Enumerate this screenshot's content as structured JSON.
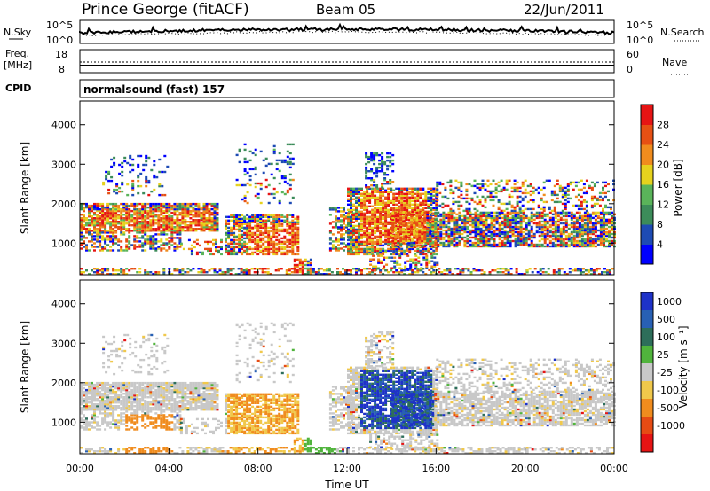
{
  "header": {
    "station": "Prince George (fitACF)",
    "beam": "Beam 05",
    "date": "22/Jun/2011"
  },
  "panels": {
    "noise_left_label": "N.Sky",
    "noise_right_label": "N.Search",
    "noise_ticks": [
      "10^5",
      "10^0"
    ],
    "freq_left_label": "Freq.",
    "freq_left_unit": "[MHz]",
    "freq_ticks": [
      "18",
      "8"
    ],
    "nave_label": "Nave",
    "nave_ticks": [
      "60",
      "0"
    ],
    "cpid_label": "CPID",
    "cpid_text": "normalsound (fast) 157"
  },
  "chart_data": [
    {
      "type": "heatmap",
      "name": "power",
      "ylabel": "Slant Range [km]",
      "xlabel": "",
      "yticks": [
        1000,
        2000,
        3000,
        4000
      ],
      "ylim": [
        200,
        4600
      ],
      "colorbar": {
        "label": "Power [dB]",
        "ticks": [
          4,
          8,
          12,
          16,
          20,
          24,
          28
        ],
        "colors": [
          "#0000ff",
          "#1e4bb4",
          "#3c8c5a",
          "#5ab45a",
          "#e6d21e",
          "#f08c1e",
          "#e65014",
          "#e61414"
        ]
      }
    },
    {
      "type": "heatmap",
      "name": "velocity",
      "ylabel": "Slant Range [km]",
      "xlabel": "Time UT",
      "xticks": [
        "00:00",
        "04:00",
        "08:00",
        "12:00",
        "16:00",
        "20:00",
        "00:00"
      ],
      "yticks": [
        1000,
        2000,
        3000,
        4000
      ],
      "ylim": [
        200,
        4600
      ],
      "colorbar": {
        "label": "Velocity [m s⁻¹]",
        "ticks": [
          "1000",
          "500",
          "100",
          "25",
          "-25",
          "-100",
          "-500",
          "-1000"
        ],
        "colors": [
          "#1e32c8",
          "#2860b4",
          "#2d6e5a",
          "#50b43c",
          "#c8c8c8",
          "#f0c84b",
          "#f08c1e",
          "#e64b14",
          "#e61414"
        ]
      }
    }
  ]
}
